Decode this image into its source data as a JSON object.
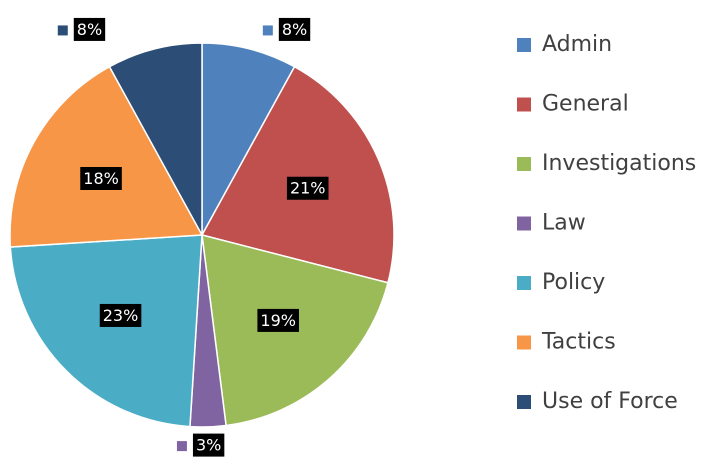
{
  "chart_data": {
    "type": "pie",
    "categories": [
      "Admin",
      "General",
      "Investigations",
      "Law",
      "Policy",
      "Tactics",
      "Use of Force"
    ],
    "values": [
      8,
      21,
      19,
      3,
      23,
      18,
      8
    ],
    "value_labels": [
      "8%",
      "21%",
      "19%",
      "3%",
      "23%",
      "18%",
      "8%"
    ],
    "colors": [
      "#4f81bd",
      "#c0504d",
      "#9bbb59",
      "#8064a2",
      "#4bacc6",
      "#f79646",
      "#2c4d75"
    ],
    "legend": "right"
  }
}
